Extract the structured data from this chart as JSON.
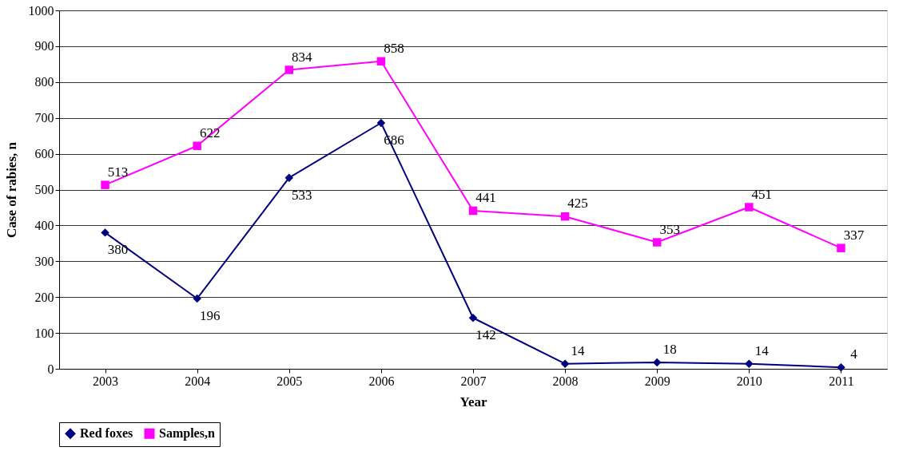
{
  "chart_data": {
    "type": "line",
    "xlabel": "Year",
    "ylabel": "Case of rabies, n",
    "categories": [
      "2003",
      "2004",
      "2005",
      "2006",
      "2007",
      "2008",
      "2009",
      "2010",
      "2011"
    ],
    "series": [
      {
        "name": "Red foxes",
        "color": "#000080",
        "marker": "diamond",
        "values": [
          380,
          196,
          533,
          686,
          142,
          14,
          18,
          14,
          4
        ]
      },
      {
        "name": "Samples,n",
        "color": "#ff00ff",
        "marker": "square",
        "values": [
          513,
          622,
          834,
          858,
          441,
          425,
          353,
          451,
          337
        ]
      }
    ],
    "ylim": [
      0,
      1000
    ],
    "yticks": [
      0,
      100,
      200,
      300,
      400,
      500,
      600,
      700,
      800,
      900,
      1000
    ],
    "grid": "y",
    "legend": "bottom",
    "data_labels": true
  }
}
